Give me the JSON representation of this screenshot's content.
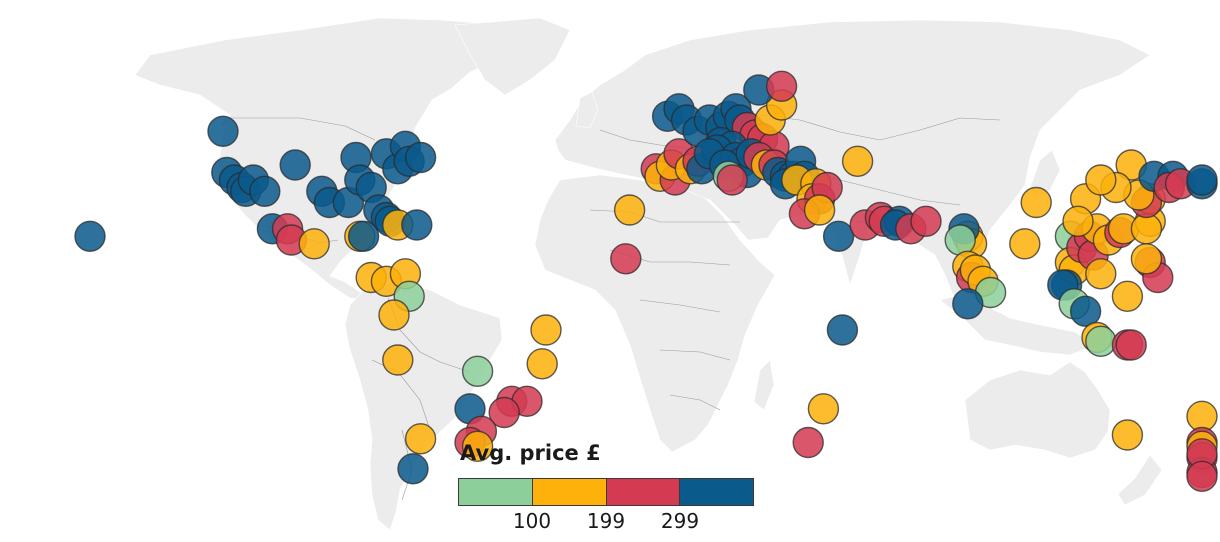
{
  "legend": {
    "title": "Avg. price £",
    "bins": [
      {
        "range": "below 100",
        "color": "#8dcf9a"
      },
      {
        "range": "100-199",
        "color": "#fdb10a"
      },
      {
        "range": "199-299",
        "color": "#d43b53"
      },
      {
        "range": "above 299",
        "color": "#0a5a8c"
      }
    ],
    "ticks": [
      "100",
      "199",
      "299"
    ]
  },
  "colors": {
    "green": "#8dcf9a",
    "yellow": "#fdb10a",
    "red": "#d43b53",
    "blue": "#0a5a8c",
    "land": "#ececec",
    "border": "#9a9a9a"
  },
  "destinations": [
    {
      "lon": -158,
      "lat": 21,
      "price": "blue"
    },
    {
      "lon": -123,
      "lat": 49,
      "price": "blue"
    },
    {
      "lon": -122,
      "lat": 38,
      "price": "blue"
    },
    {
      "lon": -120,
      "lat": 36,
      "price": "blue"
    },
    {
      "lon": -118,
      "lat": 34,
      "price": "blue"
    },
    {
      "lon": -117,
      "lat": 33,
      "price": "blue"
    },
    {
      "lon": -115,
      "lat": 36,
      "price": "blue"
    },
    {
      "lon": -112,
      "lat": 33,
      "price": "blue"
    },
    {
      "lon": -110,
      "lat": 23,
      "price": "blue"
    },
    {
      "lon": -106,
      "lat": 23,
      "price": "red"
    },
    {
      "lon": -105,
      "lat": 20,
      "price": "red"
    },
    {
      "lon": -104,
      "lat": 40,
      "price": "blue"
    },
    {
      "lon": -97,
      "lat": 33,
      "price": "blue"
    },
    {
      "lon": -95,
      "lat": 30,
      "price": "blue"
    },
    {
      "lon": -90,
      "lat": 30,
      "price": "blue"
    },
    {
      "lon": -88,
      "lat": 42,
      "price": "blue"
    },
    {
      "lon": -87,
      "lat": 36,
      "price": "blue"
    },
    {
      "lon": -84,
      "lat": 34,
      "price": "blue"
    },
    {
      "lon": -82,
      "lat": 28,
      "price": "blue"
    },
    {
      "lon": -80,
      "lat": 26,
      "price": "blue"
    },
    {
      "lon": -80,
      "lat": 43,
      "price": "blue"
    },
    {
      "lon": -77,
      "lat": 39,
      "price": "blue"
    },
    {
      "lon": -75,
      "lat": 45,
      "price": "blue"
    },
    {
      "lon": -74,
      "lat": 41,
      "price": "blue"
    },
    {
      "lon": -71,
      "lat": 42,
      "price": "blue"
    },
    {
      "lon": -99,
      "lat": 19,
      "price": "yellow"
    },
    {
      "lon": -87,
      "lat": 21,
      "price": "yellow"
    },
    {
      "lon": -86,
      "lat": 21,
      "price": "blue"
    },
    {
      "lon": -79,
      "lat": 25,
      "price": "blue"
    },
    {
      "lon": -77,
      "lat": 24,
      "price": "yellow"
    },
    {
      "lon": -72,
      "lat": 24,
      "price": "blue"
    },
    {
      "lon": -84,
      "lat": 10,
      "price": "yellow"
    },
    {
      "lon": -80,
      "lat": 9,
      "price": "yellow"
    },
    {
      "lon": -75,
      "lat": 11,
      "price": "yellow"
    },
    {
      "lon": -74,
      "lat": 5,
      "price": "green"
    },
    {
      "lon": -78,
      "lat": 0,
      "price": "yellow"
    },
    {
      "lon": -77,
      "lat": -12,
      "price": "yellow"
    },
    {
      "lon": -56,
      "lat": -15,
      "price": "green"
    },
    {
      "lon": -38,
      "lat": -4,
      "price": "yellow"
    },
    {
      "lon": -39,
      "lat": -13,
      "price": "yellow"
    },
    {
      "lon": -47,
      "lat": -23,
      "price": "red"
    },
    {
      "lon": -43,
      "lat": -23,
      "price": "red"
    },
    {
      "lon": -49,
      "lat": -26,
      "price": "red"
    },
    {
      "lon": -58,
      "lat": -25,
      "price": "blue"
    },
    {
      "lon": -55,
      "lat": -31,
      "price": "red"
    },
    {
      "lon": -58,
      "lat": -34,
      "price": "red"
    },
    {
      "lon": -56,
      "lat": -35,
      "price": "yellow"
    },
    {
      "lon": -71,
      "lat": -33,
      "price": "yellow"
    },
    {
      "lon": -73,
      "lat": -41,
      "price": "blue"
    },
    {
      "lon": -16,
      "lat": 28,
      "price": "yellow"
    },
    {
      "lon": -9,
      "lat": 39,
      "price": "red"
    },
    {
      "lon": -8,
      "lat": 37,
      "price": "yellow"
    },
    {
      "lon": -4,
      "lat": 36,
      "price": "red"
    },
    {
      "lon": -5,
      "lat": 40,
      "price": "yellow"
    },
    {
      "lon": -3,
      "lat": 43,
      "price": "red"
    },
    {
      "lon": 0,
      "lat": 39,
      "price": "yellow"
    },
    {
      "lon": 2,
      "lat": 41,
      "price": "red"
    },
    {
      "lon": 3,
      "lat": 39,
      "price": "blue"
    },
    {
      "lon": -6,
      "lat": 53,
      "price": "blue"
    },
    {
      "lon": -3,
      "lat": 55,
      "price": "blue"
    },
    {
      "lon": -1,
      "lat": 52,
      "price": "blue"
    },
    {
      "lon": 2,
      "lat": 49,
      "price": "blue"
    },
    {
      "lon": 5,
      "lat": 52,
      "price": "blue"
    },
    {
      "lon": 8,
      "lat": 50,
      "price": "blue"
    },
    {
      "lon": 10,
      "lat": 53,
      "price": "blue"
    },
    {
      "lon": 12,
      "lat": 55,
      "price": "blue"
    },
    {
      "lon": 13,
      "lat": 52,
      "price": "blue"
    },
    {
      "lon": 15,
      "lat": 50,
      "price": "red"
    },
    {
      "lon": 17,
      "lat": 48,
      "price": "red"
    },
    {
      "lon": 19,
      "lat": 47,
      "price": "red"
    },
    {
      "lon": 22,
      "lat": 45,
      "price": "red"
    },
    {
      "lon": 21,
      "lat": 52,
      "price": "yellow"
    },
    {
      "lon": 24,
      "lat": 56,
      "price": "yellow"
    },
    {
      "lon": 18,
      "lat": 60,
      "price": "blue"
    },
    {
      "lon": 24,
      "lat": 61,
      "price": "red"
    },
    {
      "lon": 8,
      "lat": 46,
      "price": "blue"
    },
    {
      "lon": 11,
      "lat": 45,
      "price": "blue"
    },
    {
      "lon": 7,
      "lat": 44,
      "price": "blue"
    },
    {
      "lon": 5,
      "lat": 43,
      "price": "blue"
    },
    {
      "lon": 12,
      "lat": 42,
      "price": "blue"
    },
    {
      "lon": 14,
      "lat": 41,
      "price": "blue"
    },
    {
      "lon": 15,
      "lat": 38,
      "price": "blue"
    },
    {
      "lon": 9,
      "lat": 40,
      "price": "blue"
    },
    {
      "lon": 10,
      "lat": 37,
      "price": "green"
    },
    {
      "lon": 11,
      "lat": 36,
      "price": "red"
    },
    {
      "lon": 16,
      "lat": 43,
      "price": "blue"
    },
    {
      "lon": 18,
      "lat": 42,
      "price": "red"
    },
    {
      "lon": 20,
      "lat": 40,
      "price": "yellow"
    },
    {
      "lon": 22,
      "lat": 40,
      "price": "red"
    },
    {
      "lon": 23,
      "lat": 38,
      "price": "blue"
    },
    {
      "lon": 25,
      "lat": 37,
      "price": "blue"
    },
    {
      "lon": 27,
      "lat": 37,
      "price": "blue"
    },
    {
      "lon": 29,
      "lat": 41,
      "price": "blue"
    },
    {
      "lon": 30,
      "lat": 37,
      "price": "blue"
    },
    {
      "lon": 25,
      "lat": 35,
      "price": "blue"
    },
    {
      "lon": 28,
      "lat": 36,
      "price": "yellow"
    },
    {
      "lon": 33,
      "lat": 35,
      "price": "yellow"
    },
    {
      "lon": 32,
      "lat": 31,
      "price": "yellow"
    },
    {
      "lon": 34,
      "lat": 31,
      "price": "red"
    },
    {
      "lon": 36,
      "lat": 34,
      "price": "red"
    },
    {
      "lon": 30,
      "lat": 27,
      "price": "red"
    },
    {
      "lon": 34,
      "lat": 28,
      "price": "yellow"
    },
    {
      "lon": 39,
      "lat": 21,
      "price": "blue"
    },
    {
      "lon": 44,
      "lat": 41,
      "price": "yellow"
    },
    {
      "lon": 46,
      "lat": 24,
      "price": "red"
    },
    {
      "lon": 50,
      "lat": 26,
      "price": "red"
    },
    {
      "lon": 51,
      "lat": 25,
      "price": "red"
    },
    {
      "lon": 55,
      "lat": 25,
      "price": "blue"
    },
    {
      "lon": 54,
      "lat": 24,
      "price": "blue"
    },
    {
      "lon": 58,
      "lat": 23,
      "price": "red"
    },
    {
      "lon": 62,
      "lat": 25,
      "price": "red"
    },
    {
      "lon": -17,
      "lat": 15,
      "price": "red"
    },
    {
      "lon": 40,
      "lat": -4,
      "price": "blue"
    },
    {
      "lon": 35,
      "lat": -25,
      "price": "yellow"
    },
    {
      "lon": 31,
      "lat": -34,
      "price": "red"
    },
    {
      "lon": 73,
      "lat": 21,
      "price": "yellow"
    },
    {
      "lon": 74,
      "lat": 19,
      "price": "yellow"
    },
    {
      "lon": 72,
      "lat": 23,
      "price": "blue"
    },
    {
      "lon": 71,
      "lat": 20,
      "price": "green"
    },
    {
      "lon": 73,
      "lat": 13,
      "price": "yellow"
    },
    {
      "lon": 74,
      "lat": 10,
      "price": "red"
    },
    {
      "lon": 75,
      "lat": 12,
      "price": "yellow"
    },
    {
      "lon": 77,
      "lat": 9,
      "price": "yellow"
    },
    {
      "lon": 79,
      "lat": 6,
      "price": "green"
    },
    {
      "lon": 73,
      "lat": 3,
      "price": "blue"
    },
    {
      "lon": 88,
      "lat": 19,
      "price": "yellow"
    },
    {
      "lon": 100,
      "lat": 21,
      "price": "green"
    },
    {
      "lon": 100,
      "lat": 14,
      "price": "yellow"
    },
    {
      "lon": 101,
      "lat": 12,
      "price": "yellow"
    },
    {
      "lon": 99,
      "lat": 8,
      "price": "blue"
    },
    {
      "lon": 98,
      "lat": 8,
      "price": "blue"
    },
    {
      "lon": 101,
      "lat": 3,
      "price": "green"
    },
    {
      "lon": 104,
      "lat": 1,
      "price": "blue"
    },
    {
      "lon": 103,
      "lat": 18,
      "price": "red"
    },
    {
      "lon": 105,
      "lat": 21,
      "price": "red"
    },
    {
      "lon": 106,
      "lat": 16,
      "price": "red"
    },
    {
      "lon": 108,
      "lat": 11,
      "price": "yellow"
    },
    {
      "lon": 107,
      "lat": 23,
      "price": "yellow"
    },
    {
      "lon": 110,
      "lat": 20,
      "price": "yellow"
    },
    {
      "lon": 113,
      "lat": 22,
      "price": "red"
    },
    {
      "lon": 114,
      "lat": 23,
      "price": "yellow"
    },
    {
      "lon": 121,
      "lat": 25,
      "price": "yellow"
    },
    {
      "lon": 120,
      "lat": 23,
      "price": "yellow"
    },
    {
      "lon": 121,
      "lat": 31,
      "price": "yellow"
    },
    {
      "lon": 120,
      "lat": 30,
      "price": "red"
    },
    {
      "lon": 118,
      "lat": 32,
      "price": "yellow"
    },
    {
      "lon": 116,
      "lat": 40,
      "price": "yellow"
    },
    {
      "lon": 112,
      "lat": 34,
      "price": "yellow"
    },
    {
      "lon": 104,
      "lat": 31,
      "price": "yellow"
    },
    {
      "lon": 108,
      "lat": 36,
      "price": "yellow"
    },
    {
      "lon": 91,
      "lat": 30,
      "price": "yellow"
    },
    {
      "lon": 102,
      "lat": 25,
      "price": "yellow"
    },
    {
      "lon": 122,
      "lat": 37,
      "price": "blue"
    },
    {
      "lon": 127,
      "lat": 37,
      "price": "blue"
    },
    {
      "lon": 126,
      "lat": 34,
      "price": "red"
    },
    {
      "lon": 129,
      "lat": 35,
      "price": "red"
    },
    {
      "lon": 135,
      "lat": 35,
      "price": "blue"
    },
    {
      "lon": 139,
      "lat": 36,
      "price": "blue"
    },
    {
      "lon": 121,
      "lat": 14,
      "price": "red"
    },
    {
      "lon": 123,
      "lat": 10,
      "price": "red"
    },
    {
      "lon": 120,
      "lat": 15,
      "price": "yellow"
    },
    {
      "lon": 115,
      "lat": 5,
      "price": "yellow"
    },
    {
      "lon": 107,
      "lat": -6,
      "price": "yellow"
    },
    {
      "lon": 108,
      "lat": -7,
      "price": "green"
    },
    {
      "lon": 115,
      "lat": -8,
      "price": "red"
    },
    {
      "lon": 116,
      "lat": -8,
      "price": "red"
    },
    {
      "lon": 153,
      "lat": -27,
      "price": "yellow"
    },
    {
      "lon": 151,
      "lat": -34,
      "price": "red"
    },
    {
      "lon": 115,
      "lat": -32,
      "price": "yellow"
    },
    {
      "lon": 138,
      "lat": -35,
      "price": "yellow"
    },
    {
      "lon": 145,
      "lat": -38,
      "price": "red"
    },
    {
      "lon": 147,
      "lat": -42,
      "price": "red"
    },
    {
      "lon": 174,
      "lat": -37,
      "price": "red"
    },
    {
      "lon": 172,
      "lat": -43,
      "price": "red"
    }
  ]
}
